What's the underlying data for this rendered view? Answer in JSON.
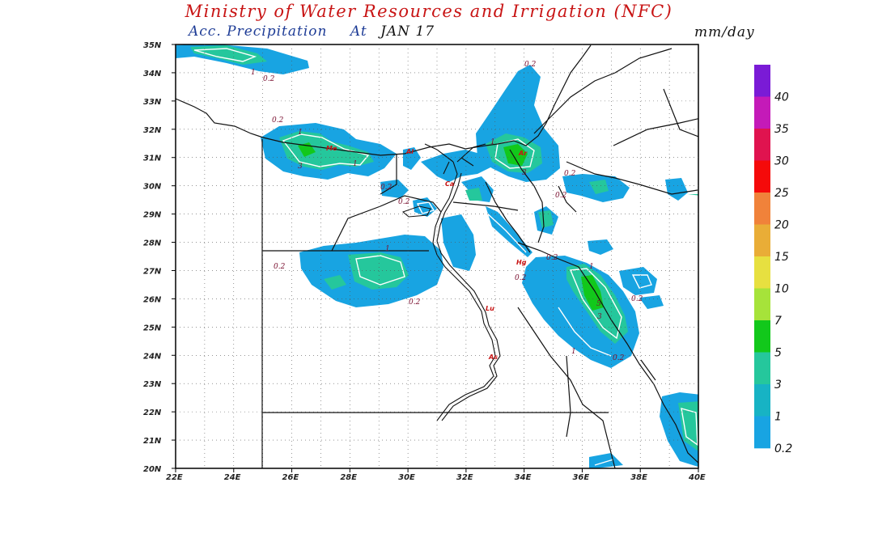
{
  "header": {
    "title": "Ministry of Water Resources and Irrigation (NFC)",
    "subtitle_label": "Acc. Precipitation",
    "subtitle_at": "At",
    "date": "JAN 17",
    "units": "mm/day"
  },
  "map": {
    "lat_labels": [
      "35N",
      "34N",
      "33N",
      "32N",
      "31N",
      "30N",
      "29N",
      "28N",
      "27N",
      "26N",
      "25N",
      "24N",
      "23N",
      "22N",
      "21N",
      "20N"
    ],
    "lon_labels": [
      "22E",
      "24E",
      "26E",
      "28E",
      "30E",
      "32E",
      "34E",
      "36E",
      "38E",
      "40E"
    ],
    "lat_range": [
      20,
      35
    ],
    "lon_range": [
      22,
      40
    ],
    "contour_labels": [
      "0.2",
      "1",
      "3",
      "5"
    ],
    "city_markers": [
      "Me",
      "Al",
      "Ca",
      "Ar",
      "Hg",
      "Lu",
      "As"
    ]
  },
  "legend": {
    "labels": [
      "40",
      "35",
      "30",
      "25",
      "20",
      "15",
      "10",
      "7",
      "5",
      "3",
      "1",
      "0.2"
    ],
    "colors": [
      "#7a1bd6",
      "#c41ab8",
      "#e0134f",
      "#f50a0a",
      "#f0823a",
      "#e9ad37",
      "#e7e040",
      "#a6e33a",
      "#12c81b",
      "#25c79c",
      "#17b3c4",
      "#18a4e2"
    ]
  },
  "colors": {
    "title": "#c81414",
    "subtitle": "#1e3c96",
    "shade_light": "#18a4e2",
    "shade_mid": "#25c79c",
    "shade_high": "#12c81b"
  }
}
